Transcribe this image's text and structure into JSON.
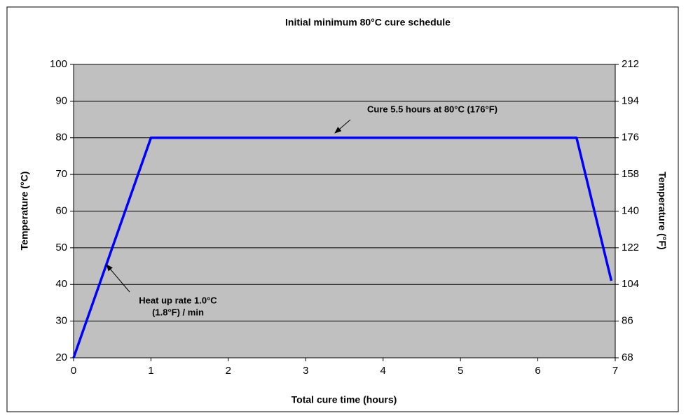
{
  "chart_data": {
    "type": "line",
    "title": "Initial minimum 80°C cure schedule",
    "x_label": "Total cure time (hours)",
    "y_label": "Temperature (°C)",
    "y2_label": "Temperature (°F)",
    "x": [
      0,
      1,
      6.5,
      6.95
    ],
    "series": [
      {
        "color": "#0000ff",
        "values": [
          20,
          80,
          80,
          41
        ]
      }
    ],
    "xlim": [
      0,
      7
    ],
    "xticks": [
      0,
      1,
      2,
      3,
      4,
      5,
      6,
      7
    ],
    "ylim": [
      20,
      100
    ],
    "yticks": [
      20,
      30,
      40,
      50,
      60,
      70,
      80,
      90,
      100
    ],
    "y2lim": [
      68,
      212
    ],
    "y2ticks": [
      68,
      86,
      104,
      122,
      140,
      158,
      176,
      194,
      212
    ],
    "grid": true,
    "plot_background": "#c0c0c0",
    "annotations": [
      {
        "lines": [
          "Cure 5.5 hours at 80°C (176°F)"
        ]
      },
      {
        "lines": [
          "Heat up rate 1.0°C",
          "(1.8°F) / min"
        ]
      }
    ]
  }
}
